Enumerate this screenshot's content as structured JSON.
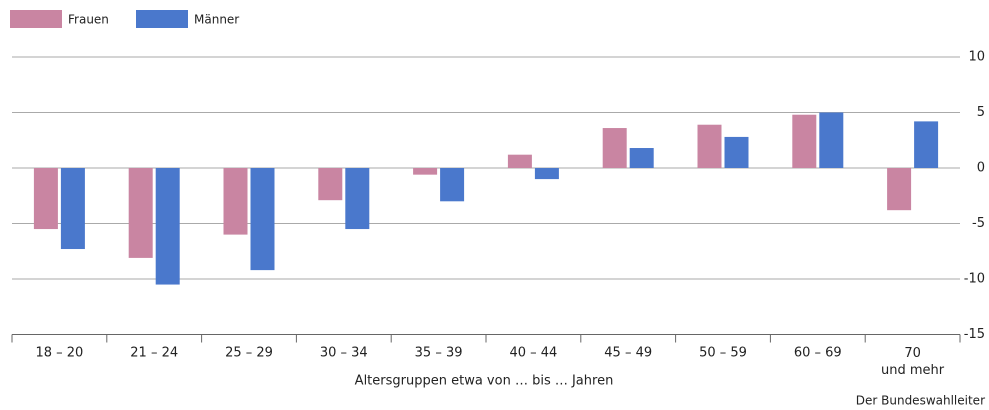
{
  "chart_data": {
    "type": "bar",
    "categories": [
      "18 – 20",
      "21 – 24",
      "25 – 29",
      "30 – 34",
      "35 – 39",
      "40 – 44",
      "45 – 49",
      "50 – 59",
      "60 – 69",
      "70\nund mehr"
    ],
    "series": [
      {
        "name": "Frauen",
        "color": "#c985a2",
        "values": [
          -5.5,
          -8.1,
          -6.0,
          -2.9,
          -0.6,
          1.2,
          3.6,
          3.9,
          4.8,
          -3.8
        ]
      },
      {
        "name": "Männer",
        "color": "#4a78cc",
        "values": [
          -7.3,
          -10.5,
          -9.2,
          -5.5,
          -3.0,
          -1.0,
          1.8,
          2.8,
          5.0,
          4.2
        ]
      }
    ],
    "ylim": [
      -15,
      10
    ],
    "yticks": [
      -15,
      -10,
      -5,
      0,
      5,
      10
    ],
    "grid": true,
    "xlabel": "Altersgruppen etwa von … bis … Jahren",
    "source": "Der Bundeswahlleiter",
    "legend": "top-left"
  }
}
